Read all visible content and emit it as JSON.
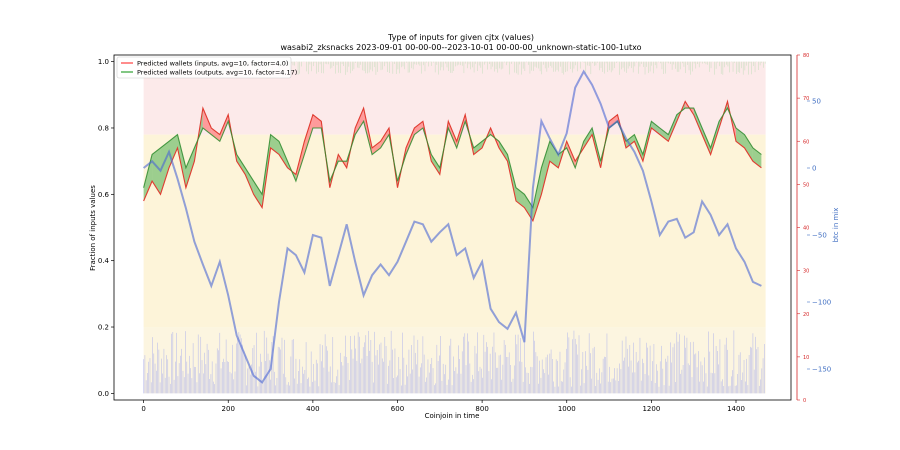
{
  "chart_data": {
    "type": "line",
    "title": "Type of inputs for given cjtx (values)",
    "subtitle": "wasabi2_zksnacks 2023-09-01 00-00-00--2023-10-01 00-00-00_unknown-static-100-1utxo",
    "xlabel": "Coinjoin in time",
    "ylabel": "Fraction of inputs values",
    "ylabel_right": "btc in mix",
    "xlim": [
      -70,
      1530
    ],
    "ylim": [
      -0.02,
      1.02
    ],
    "x_ticks": [
      "0",
      "200",
      "400",
      "600",
      "800",
      "1000",
      "1200",
      "1400"
    ],
    "y_ticks": [
      "0.0",
      "0.2",
      "0.4",
      "0.6",
      "0.8",
      "1.0"
    ],
    "y2_ticks": [
      "0",
      "10",
      "20",
      "30",
      "40",
      "50",
      "60",
      "70",
      "80"
    ],
    "y3_ticks": [
      "50",
      "0",
      "−50",
      "−100",
      "−150"
    ],
    "legend": {
      "position": "top-left",
      "entries": [
        {
          "label": "Predicted wallets (inputs, avg=10, factor=4.0)",
          "color": "#ff5a5a"
        },
        {
          "label": "Predicted wallets (outputs, avg=10, factor=4.17)",
          "color": "#4caf50"
        }
      ]
    },
    "series": [
      {
        "name": "Predicted wallets (inputs, avg=10, factor=4.0)",
        "color": "#e03c31",
        "x": [
          0,
          20,
          40,
          60,
          80,
          100,
          120,
          140,
          160,
          180,
          200,
          220,
          240,
          260,
          280,
          300,
          320,
          340,
          360,
          380,
          400,
          420,
          440,
          460,
          480,
          500,
          520,
          540,
          560,
          580,
          600,
          620,
          640,
          660,
          680,
          700,
          720,
          740,
          760,
          780,
          800,
          820,
          840,
          860,
          880,
          900,
          920,
          940,
          960,
          980,
          1000,
          1020,
          1040,
          1060,
          1080,
          1100,
          1120,
          1140,
          1160,
          1180,
          1200,
          1220,
          1240,
          1260,
          1280,
          1300,
          1320,
          1340,
          1360,
          1380,
          1400,
          1420,
          1440,
          1460
        ],
        "values": [
          0.58,
          0.64,
          0.6,
          0.68,
          0.74,
          0.62,
          0.7,
          0.86,
          0.8,
          0.78,
          0.84,
          0.7,
          0.66,
          0.6,
          0.56,
          0.74,
          0.72,
          0.68,
          0.66,
          0.76,
          0.84,
          0.82,
          0.62,
          0.72,
          0.68,
          0.8,
          0.86,
          0.74,
          0.76,
          0.8,
          0.62,
          0.74,
          0.8,
          0.82,
          0.7,
          0.66,
          0.82,
          0.76,
          0.84,
          0.72,
          0.74,
          0.8,
          0.74,
          0.7,
          0.58,
          0.56,
          0.52,
          0.6,
          0.7,
          0.68,
          0.76,
          0.7,
          0.74,
          0.78,
          0.68,
          0.82,
          0.84,
          0.74,
          0.76,
          0.7,
          0.8,
          0.78,
          0.76,
          0.82,
          0.88,
          0.84,
          0.78,
          0.72,
          0.8,
          0.88,
          0.76,
          0.74,
          0.7,
          0.68
        ]
      },
      {
        "name": "Predicted wallets (outputs, avg=10, factor=4.17)",
        "color": "#2e8b2e",
        "x": [
          0,
          20,
          40,
          60,
          80,
          100,
          120,
          140,
          160,
          180,
          200,
          220,
          240,
          260,
          280,
          300,
          320,
          340,
          360,
          380,
          400,
          420,
          440,
          460,
          480,
          500,
          520,
          540,
          560,
          580,
          600,
          620,
          640,
          660,
          680,
          700,
          720,
          740,
          760,
          780,
          800,
          820,
          840,
          860,
          880,
          900,
          920,
          940,
          960,
          980,
          1000,
          1020,
          1040,
          1060,
          1080,
          1100,
          1120,
          1140,
          1160,
          1180,
          1200,
          1220,
          1240,
          1260,
          1280,
          1300,
          1320,
          1340,
          1360,
          1380,
          1400,
          1420,
          1440,
          1460
        ],
        "values": [
          0.62,
          0.72,
          0.74,
          0.76,
          0.78,
          0.68,
          0.74,
          0.8,
          0.78,
          0.76,
          0.82,
          0.72,
          0.68,
          0.64,
          0.6,
          0.78,
          0.76,
          0.7,
          0.64,
          0.72,
          0.8,
          0.8,
          0.64,
          0.7,
          0.7,
          0.78,
          0.82,
          0.72,
          0.74,
          0.78,
          0.64,
          0.72,
          0.78,
          0.8,
          0.72,
          0.68,
          0.8,
          0.74,
          0.82,
          0.74,
          0.76,
          0.78,
          0.76,
          0.72,
          0.62,
          0.6,
          0.56,
          0.68,
          0.76,
          0.72,
          0.74,
          0.68,
          0.76,
          0.8,
          0.7,
          0.8,
          0.82,
          0.76,
          0.78,
          0.72,
          0.82,
          0.8,
          0.78,
          0.84,
          0.86,
          0.86,
          0.8,
          0.74,
          0.82,
          0.86,
          0.8,
          0.78,
          0.74,
          0.72
        ]
      },
      {
        "name": "btc in mix",
        "color": "#4a66d4",
        "axis": "right",
        "x": [
          0,
          20,
          40,
          60,
          80,
          100,
          120,
          140,
          160,
          180,
          200,
          220,
          240,
          260,
          280,
          300,
          320,
          340,
          360,
          380,
          400,
          420,
          440,
          460,
          480,
          500,
          520,
          540,
          560,
          580,
          600,
          620,
          640,
          660,
          680,
          700,
          720,
          740,
          760,
          780,
          800,
          820,
          840,
          860,
          880,
          900,
          920,
          940,
          960,
          980,
          1000,
          1020,
          1040,
          1060,
          1080,
          1100,
          1120,
          1140,
          1160,
          1180,
          1200,
          1220,
          1240,
          1260,
          1280,
          1300,
          1320,
          1340,
          1360,
          1380,
          1400,
          1420,
          1440,
          1460
        ],
        "values": [
          0,
          5,
          -2,
          12,
          -8,
          -30,
          -55,
          -72,
          -88,
          -70,
          -95,
          -125,
          -140,
          -155,
          -160,
          -150,
          -100,
          -60,
          -65,
          -78,
          -50,
          -52,
          -88,
          -65,
          -42,
          -70,
          -95,
          -80,
          -72,
          -80,
          -70,
          -55,
          -40,
          -42,
          -55,
          -48,
          -42,
          -65,
          -60,
          -82,
          -70,
          -105,
          -115,
          -120,
          -108,
          -130,
          -15,
          35,
          22,
          10,
          26,
          60,
          72,
          62,
          48,
          30,
          35,
          22,
          12,
          -2,
          -25,
          -50,
          -40,
          -38,
          -52,
          -48,
          -25,
          -35,
          -50,
          -42,
          -60,
          -70,
          -85,
          -88
        ]
      }
    ]
  }
}
